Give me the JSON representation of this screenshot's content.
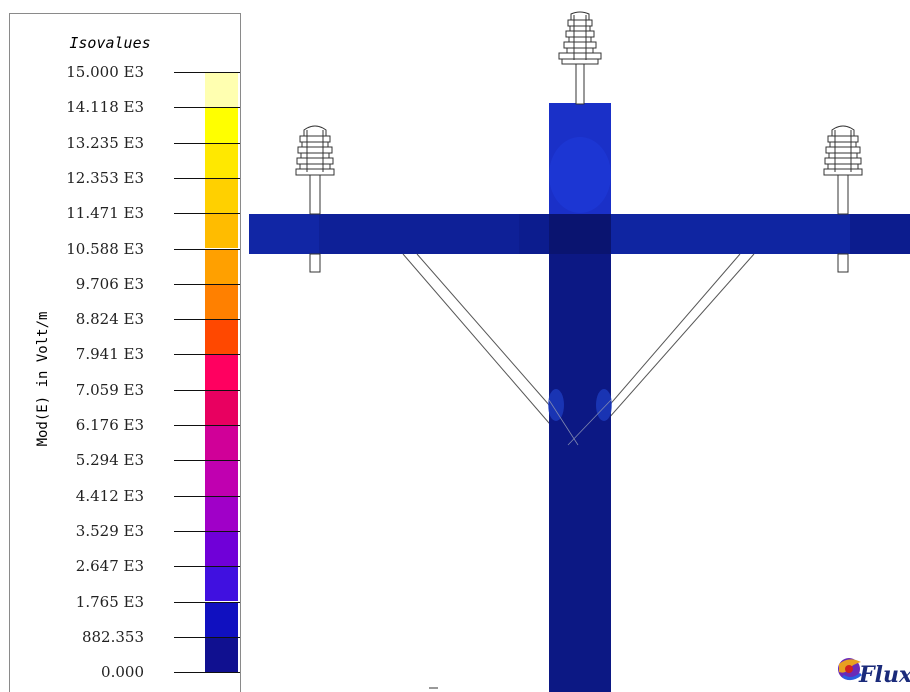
{
  "legend": {
    "title": "Isovalues",
    "quantity_label": "Mod(E) in Volt/m",
    "entries": [
      {
        "label": "15.000 E3",
        "color": "#FFFFB0"
      },
      {
        "label": "14.118 E3",
        "color": "#FFFF00"
      },
      {
        "label": "13.235 E3",
        "color": "#FFE800"
      },
      {
        "label": "12.353 E3",
        "color": "#FFD000"
      },
      {
        "label": "11.471 E3",
        "color": "#FFBC00"
      },
      {
        "label": "10.588 E3",
        "color": "#FFA000"
      },
      {
        "label": "9.706 E3",
        "color": "#FF8000"
      },
      {
        "label": "8.824 E3",
        "color": "#FF4800"
      },
      {
        "label": "7.941 E3",
        "color": "#FF0060"
      },
      {
        "label": "7.059 E3",
        "color": "#E80060"
      },
      {
        "label": "6.176 E3",
        "color": "#D00098"
      },
      {
        "label": "5.294 E3",
        "color": "#C000B0"
      },
      {
        "label": "4.412 E3",
        "color": "#A000C8"
      },
      {
        "label": "3.529 E3",
        "color": "#7000D8"
      },
      {
        "label": "2.647 E3",
        "color": "#4010E0"
      },
      {
        "label": "1.765 E3",
        "color": "#1010C0"
      },
      {
        "label": "882.353",
        "color": "#101090"
      },
      {
        "label": "0.000",
        "color": "#0A0A60"
      }
    ]
  },
  "logo": {
    "text": "Flux"
  },
  "scene_colors": {
    "pole": "#0C1884",
    "crossarm": "#0C1C8E",
    "crossarm_highlight": "#1530B8",
    "pole_top": "#1A30C8",
    "insulator_line": "#333333",
    "brace_line": "#555555"
  }
}
